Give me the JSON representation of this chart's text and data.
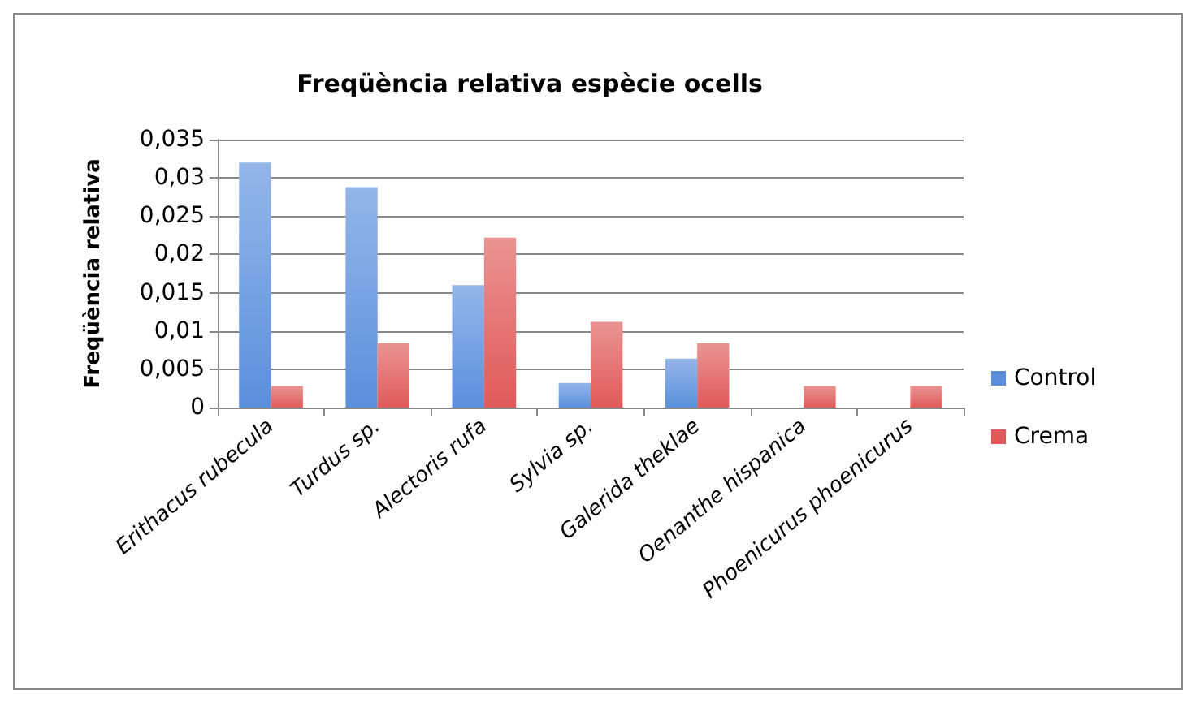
{
  "chart_data": {
    "type": "bar",
    "title": "Freqüència relativa espècie ocells",
    "ylabel": "Freqüència relativa",
    "categories": [
      "Erithacus rubecula",
      "Turdus sp.",
      "Alectoris rufa",
      "Sylvia sp.",
      "Galerida theklae",
      "Oenanthe hispanica",
      "Phoenicurus phoenicurus"
    ],
    "series": [
      {
        "name": "Control",
        "color": "#5b8fdc",
        "values": [
          0.032,
          0.0288,
          0.016,
          0.0032,
          0.0064,
          0,
          0
        ]
      },
      {
        "name": "Crema",
        "color": "#e05a5a",
        "values": [
          0.0028,
          0.0084,
          0.0222,
          0.0112,
          0.0084,
          0.0028,
          0.0028
        ]
      }
    ],
    "ylim": [
      0,
      0.035
    ],
    "yticks": [
      0,
      {
        "value": 0.005,
        "label": "0,005"
      },
      {
        "value": 0.01,
        "label": "0,01"
      },
      {
        "value": 0.015,
        "label": "0,015"
      },
      {
        "value": 0.02,
        "label": "0,02"
      },
      {
        "value": 0.025,
        "label": "0,025"
      },
      {
        "value": 0.03,
        "label": "0,03"
      },
      {
        "value": 0.035,
        "label": "0,035"
      }
    ],
    "grid": "y",
    "legend": "right"
  }
}
